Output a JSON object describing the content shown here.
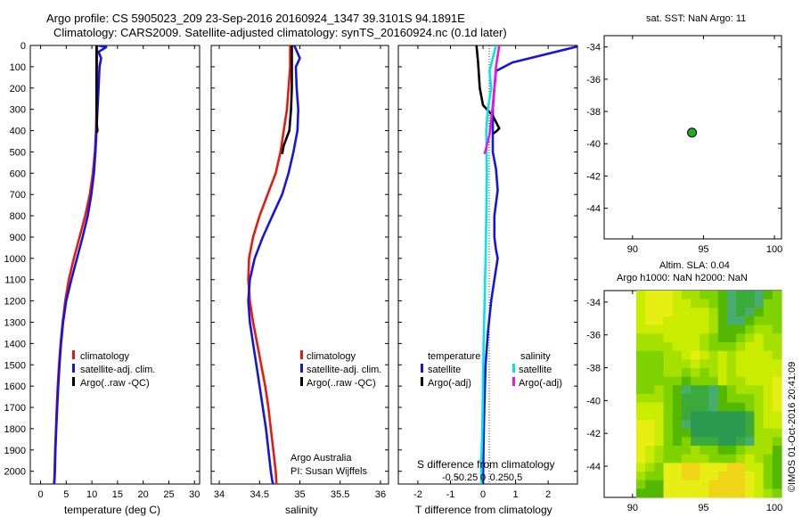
{
  "header": {
    "line1": "Argo profile: CS 5905023_209 23-Sep-2016 20160924_1347 39.3101S 94.1891E",
    "line2": "Climatology: CARS2009. Satellite-adjusted climatology: synTS_20160924.nc (0.1d later)"
  },
  "credits": {
    "program": "Argo Australia",
    "pi": "PI: Susan Wijffels",
    "stamp": "©IMOS 01-Oct-2016 20:41:09"
  },
  "colors": {
    "climatology": "#e8190f",
    "satellite": "#1515e0",
    "argo": "#000000",
    "satellite_salinity": "#00e5e5",
    "argo_salinity": "#ee11ee",
    "map_marker": "#22aa22"
  },
  "legends": {
    "temp": [
      "climatology",
      "satellite-adj. clim.",
      "Argo(..raw -QC)"
    ],
    "sal": [
      "climatology",
      "satellite-adj. clim.",
      "Argo(..raw -QC)"
    ],
    "diff_headers": [
      "temperature",
      "salinity"
    ],
    "diff_temp": [
      "satellite",
      "Argo(-adj)"
    ],
    "diff_sal": [
      "satellite",
      "Argo(-adj)"
    ]
  },
  "chart_data": [
    {
      "type": "line",
      "id": "temperature-profile",
      "xlabel": "temperature (deg C)",
      "xlim": [
        -2,
        31
      ],
      "ylim": [
        2060,
        0
      ],
      "xticks": [
        0,
        5,
        10,
        15,
        20,
        25,
        30
      ],
      "yticks": [
        0,
        100,
        200,
        300,
        400,
        500,
        600,
        700,
        800,
        900,
        1000,
        1100,
        1200,
        1300,
        1400,
        1500,
        1600,
        1700,
        1800,
        1900,
        2000
      ],
      "series": [
        {
          "name": "climatology",
          "color": "#e8190f",
          "x": [
            11.0,
            11.0,
            11.0,
            10.9,
            10.8,
            10.6,
            10.2,
            9.6,
            8.7,
            7.6,
            6.5,
            5.5,
            4.8,
            4.3,
            3.9,
            3.6,
            3.35,
            3.15,
            3.0,
            2.85,
            2.75,
            2.65,
            2.58
          ],
          "y": [
            0,
            100,
            200,
            300,
            400,
            500,
            600,
            700,
            800,
            900,
            1000,
            1100,
            1200,
            1300,
            1400,
            1500,
            1600,
            1700,
            1800,
            1900,
            2000,
            2050,
            2060
          ]
        },
        {
          "name": "satellite-adj. clim.",
          "color": "#1515e0",
          "x": [
            11.2,
            12.8,
            11.3,
            11.8,
            11.5,
            11.3,
            11.1,
            10.9,
            10.7,
            10.4,
            9.9,
            9.2,
            8.2,
            7.1,
            6.0,
            5.0,
            4.4,
            4.0,
            3.7,
            3.45,
            3.25,
            3.05,
            2.9,
            2.8,
            2.7,
            2.62
          ],
          "y": [
            0,
            8,
            30,
            60,
            100,
            200,
            300,
            400,
            500,
            600,
            700,
            800,
            900,
            1000,
            1100,
            1200,
            1300,
            1400,
            1500,
            1600,
            1700,
            1800,
            1900,
            2000,
            2050,
            2060
          ]
        },
        {
          "name": "Argo(..raw -QC)",
          "color": "#000000",
          "x": [
            10.9,
            10.9,
            10.9,
            10.9,
            11.0,
            11.1,
            10.9
          ],
          "y": [
            0,
            100,
            200,
            300,
            380,
            400,
            410
          ]
        }
      ]
    },
    {
      "type": "line",
      "id": "salinity-profile",
      "xlabel": "salinity",
      "xlim": [
        33.9,
        36.1
      ],
      "ylim": [
        2060,
        0
      ],
      "xticks": [
        34,
        34.5,
        35,
        35.5,
        36
      ],
      "series": [
        {
          "name": "climatology",
          "color": "#e8190f",
          "x": [
            34.88,
            34.88,
            34.86,
            34.84,
            34.8,
            34.76,
            34.7,
            34.6,
            34.5,
            34.42,
            34.37,
            34.36,
            34.38,
            34.42,
            34.47,
            34.52,
            34.57,
            34.61,
            34.64,
            34.67,
            34.7,
            34.71
          ],
          "y": [
            0,
            100,
            200,
            300,
            400,
            500,
            600,
            700,
            800,
            900,
            1000,
            1100,
            1200,
            1300,
            1400,
            1500,
            1600,
            1700,
            1800,
            1900,
            2000,
            2060
          ]
        },
        {
          "name": "satellite-adj. clim.",
          "color": "#1515e0",
          "x": [
            34.93,
            35.0,
            34.95,
            34.96,
            34.98,
            34.97,
            34.92,
            34.86,
            34.78,
            34.66,
            34.54,
            34.44,
            34.38,
            34.36,
            34.38,
            34.42,
            34.46,
            34.5,
            34.54,
            34.58,
            34.61,
            34.64,
            34.66,
            34.67
          ],
          "y": [
            0,
            60,
            100,
            200,
            300,
            400,
            500,
            600,
            700,
            800,
            900,
            1000,
            1100,
            1200,
            1300,
            1400,
            1500,
            1600,
            1700,
            1800,
            1900,
            2000,
            2050,
            2060
          ]
        },
        {
          "name": "Argo(..raw -QC)",
          "color": "#000000",
          "x": [
            34.9,
            34.9,
            34.9,
            34.89,
            34.87,
            34.8,
            34.78
          ],
          "y": [
            0,
            100,
            200,
            300,
            400,
            470,
            510
          ]
        }
      ]
    },
    {
      "type": "line",
      "id": "difference-profile",
      "xlabel": "T difference from climatology",
      "xlabel_top": "S difference from climatology",
      "xlim": [
        -2.6,
        2.9
      ],
      "ylim": [
        2060,
        0
      ],
      "xticks": [
        -2,
        -1,
        0,
        1,
        2
      ],
      "xticks_salinity": [
        -0.5,
        -0.25,
        0,
        0.25,
        0.5
      ],
      "series": [
        {
          "name": "temperature satellite",
          "color": "#1515e0",
          "x": [
            2.9,
            0.9,
            0.4,
            0.35,
            0.3,
            0.3,
            0.3,
            0.4,
            0.45,
            0.35,
            0.35,
            0.4,
            0.45,
            0.35,
            0.25,
            0.15,
            0.08,
            0.04,
            0.02,
            0.0
          ],
          "y": [
            5,
            80,
            120,
            200,
            300,
            400,
            500,
            580,
            680,
            800,
            900,
            960,
            1000,
            1100,
            1200,
            1350,
            1500,
            1700,
            1850,
            2060
          ]
        },
        {
          "name": "temperature Argo(-adj)",
          "color": "#000000",
          "x": [
            -0.2,
            -0.15,
            -0.1,
            0.0,
            0.3,
            0.5,
            0.4,
            0.3
          ],
          "y": [
            0,
            80,
            200,
            280,
            330,
            390,
            405,
            415
          ]
        },
        {
          "name": "salinity satellite",
          "color": "#00e5e5",
          "x": [
            0.4,
            0.3,
            0.2,
            0.25,
            0.15,
            0.1,
            0.12,
            0.1,
            0.08,
            0.05,
            0.02,
            0.0,
            -0.02,
            -0.05,
            -0.05
          ],
          "y": [
            0,
            60,
            120,
            200,
            300,
            400,
            600,
            800,
            1000,
            1200,
            1400,
            1600,
            1800,
            1950,
            2060
          ]
        },
        {
          "name": "salinity Argo(-adj)",
          "color": "#ee11ee",
          "x": [
            0.5,
            0.4,
            0.35,
            0.3,
            0.25,
            0.2,
            0.1,
            0.05
          ],
          "y": [
            0,
            100,
            200,
            280,
            350,
            420,
            480,
            510
          ]
        }
      ]
    },
    {
      "type": "scatter",
      "id": "location-map",
      "title": "sat. SST: NaN  Argo: 11",
      "xlim": [
        88,
        100.5
      ],
      "ylim": [
        -45.9,
        -33.3
      ],
      "xticks": [
        90,
        95,
        100
      ],
      "yticks": [
        -34,
        -36,
        -38,
        -40,
        -42,
        -44
      ],
      "points": [
        {
          "x": 94.19,
          "y": -39.31
        }
      ]
    },
    {
      "type": "heatmap",
      "id": "altimetry-map",
      "title_line1": "Altim. SLA: 0.04",
      "title_line2": "Argo h1000: NaN  h2000: NaN",
      "xlim": [
        88,
        100.5
      ],
      "ylim": [
        -45.9,
        -33.3
      ],
      "xticks": [
        90,
        95,
        100
      ],
      "yticks": [
        -34,
        -36,
        -38,
        -40,
        -42,
        -44
      ],
      "colors": [
        "#55b800",
        "#7ed200",
        "#a6e000",
        "#c9ec00",
        "#e6ee14",
        "#f0d418",
        "#3caa3a",
        "#2c9a50",
        "#47ac6e"
      ]
    }
  ]
}
